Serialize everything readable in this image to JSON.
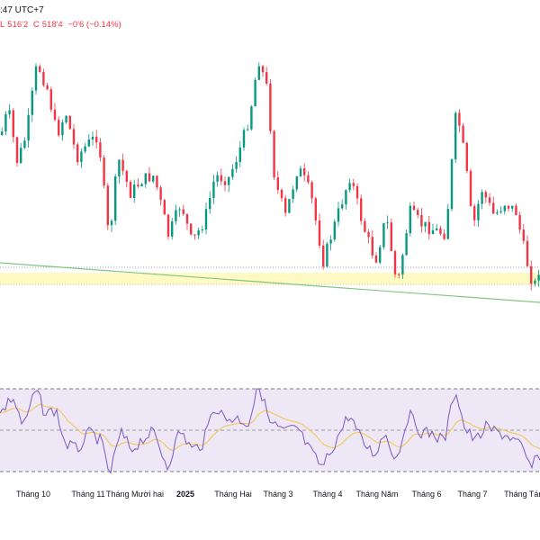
{
  "header": {
    "time_text": ":47 UTC+7",
    "low_label": "L",
    "low_value": "516'2",
    "close_label": "C",
    "close_value": "518'4",
    "change": "−0'6 (−0.14%)"
  },
  "colors": {
    "up_candle": "#089981",
    "down_candle": "#f23645",
    "rsi_line": "#7e57c2",
    "rsi_ma": "#f7c548",
    "rsi_band": "#ede7f6",
    "trendline": "#81c784",
    "support_zone": "#fff9c4"
  },
  "chart_data": {
    "type": "candlestick",
    "title": "",
    "x_axis_labels": [
      "Tháng 10",
      "Tháng 11",
      "Tháng Mười hai",
      "2025",
      "Tháng Hai",
      "Tháng 3",
      "Tháng 4",
      "Tháng Năm",
      "Tháng 6",
      "Tháng 7",
      "Tháng Tám"
    ],
    "grid": false,
    "indicator": "RSI",
    "rsi_band": [
      30,
      70
    ]
  }
}
